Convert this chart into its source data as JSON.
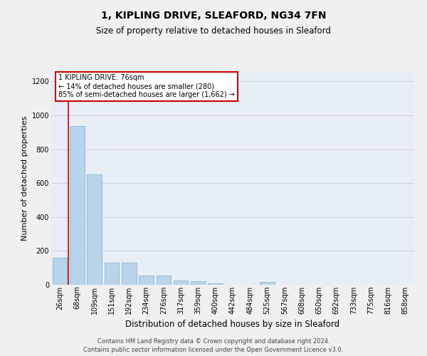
{
  "title": "1, KIPLING DRIVE, SLEAFORD, NG34 7FN",
  "subtitle": "Size of property relative to detached houses in Sleaford",
  "xlabel": "Distribution of detached houses by size in Sleaford",
  "ylabel": "Number of detached properties",
  "footer_line1": "Contains HM Land Registry data © Crown copyright and database right 2024.",
  "footer_line2": "Contains public sector information licensed under the Open Government Licence v3.0.",
  "categories": [
    "26sqm",
    "68sqm",
    "109sqm",
    "151sqm",
    "192sqm",
    "234sqm",
    "276sqm",
    "317sqm",
    "359sqm",
    "400sqm",
    "442sqm",
    "484sqm",
    "525sqm",
    "567sqm",
    "608sqm",
    "650sqm",
    "692sqm",
    "733sqm",
    "775sqm",
    "816sqm",
    "858sqm"
  ],
  "values": [
    160,
    935,
    650,
    130,
    130,
    55,
    55,
    27,
    20,
    10,
    0,
    0,
    15,
    0,
    0,
    0,
    0,
    0,
    0,
    0,
    0
  ],
  "bar_color": "#b8d4ea",
  "bar_edge_color": "#8ab4d4",
  "red_line_x": 0.5,
  "annotation_text": "1 KIPLING DRIVE: 76sqm\n← 14% of detached houses are smaller (280)\n85% of semi-detached houses are larger (1,662) →",
  "annotation_box_color": "#ffffff",
  "annotation_box_edge_color": "#cc0000",
  "red_line_color": "#cc0000",
  "ylim": [
    0,
    1260
  ],
  "yticks": [
    0,
    200,
    400,
    600,
    800,
    1000,
    1200
  ],
  "grid_color": "#ccccdd",
  "fig_bg_color": "#f0f0f0",
  "plot_bg_color": "#e8eef5",
  "title_fontsize": 10,
  "subtitle_fontsize": 8.5,
  "xlabel_fontsize": 8.5,
  "ylabel_fontsize": 8,
  "tick_fontsize": 7,
  "annotation_fontsize": 7,
  "footer_fontsize": 6
}
